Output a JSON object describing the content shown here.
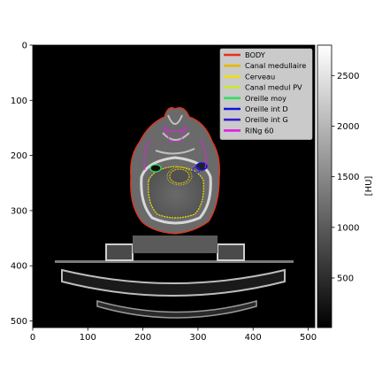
{
  "chart_data": {
    "type": "heatmap",
    "title": "",
    "xlabel": "",
    "ylabel": "",
    "xlim": [
      0,
      512
    ],
    "ylim": [
      512,
      0
    ],
    "xticks": [
      0,
      100,
      200,
      300,
      400,
      500
    ],
    "yticks": [
      0,
      100,
      200,
      300,
      400,
      500
    ],
    "colorbar": {
      "label": "[HU]",
      "range": [
        10,
        2800
      ],
      "ticks": [
        500,
        1000,
        1500,
        2000,
        2500
      ],
      "colormap": "gray"
    },
    "legend_position": "top-right",
    "legend": [
      {
        "name": "BODY",
        "color": "#e8301c"
      },
      {
        "name": "Canal medullaire",
        "color": "#e8b800"
      },
      {
        "name": "Cerveau",
        "color": "#f0e000"
      },
      {
        "name": "Canal medul PV",
        "color": "#c8e830"
      },
      {
        "name": "Oreille moy",
        "color": "#30e060"
      },
      {
        "name": "Oreille int D",
        "color": "#1010e0"
      },
      {
        "name": "Oreille int G",
        "color": "#3a1ad0"
      },
      {
        "name": "RINg 60",
        "color": "#e020e0"
      }
    ]
  }
}
